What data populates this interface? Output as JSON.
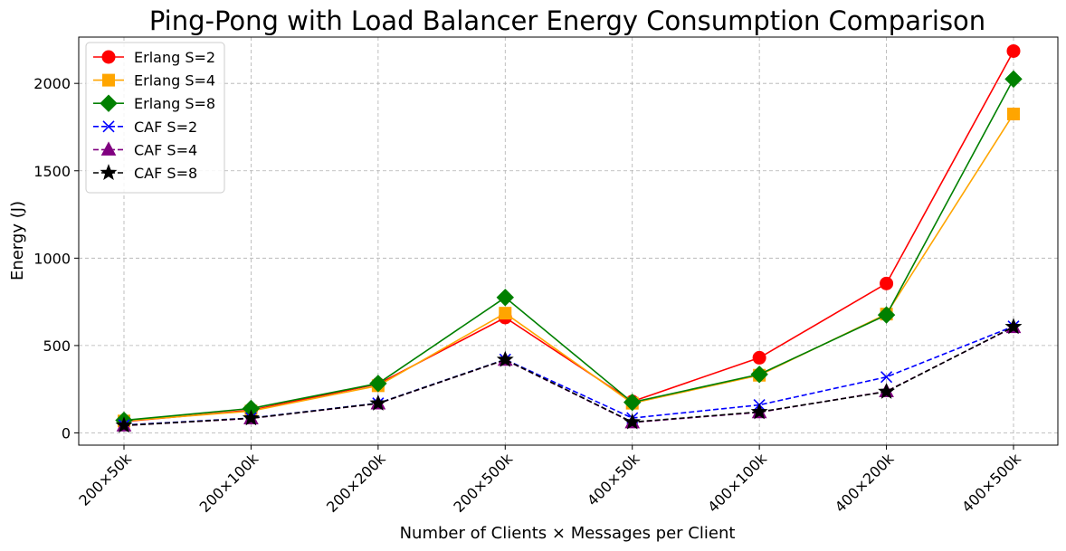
{
  "chart_data": {
    "type": "line",
    "title": "Ping-Pong with Load Balancer Energy Consumption Comparison",
    "xlabel": "Number of Clients × Messages per Client",
    "ylabel": "Energy (J)",
    "categories": [
      "200×50k",
      "200×100k",
      "200×200k",
      "200×500k",
      "400×50k",
      "400×100k",
      "400×200k",
      "400×500k"
    ],
    "ylim": [
      -70,
      2265
    ],
    "yticks": [
      0,
      500,
      1000,
      1500,
      2000
    ],
    "grid": true,
    "legend_position": "top-left",
    "series": [
      {
        "name": "Erlang S=2",
        "color": "#ff0000",
        "marker": "circle",
        "dashed": false,
        "values": [
          65,
          130,
          280,
          660,
          180,
          430,
          855,
          2185
        ]
      },
      {
        "name": "Erlang S=4",
        "color": "#ffa500",
        "marker": "square",
        "dashed": false,
        "values": [
          68,
          125,
          270,
          685,
          170,
          330,
          680,
          1825
        ]
      },
      {
        "name": "Erlang S=8",
        "color": "#008000",
        "marker": "diamond",
        "dashed": false,
        "values": [
          72,
          140,
          283,
          775,
          175,
          335,
          675,
          2025
        ]
      },
      {
        "name": "CAF S=2",
        "color": "#0000ff",
        "marker": "x",
        "dashed": true,
        "values": [
          45,
          85,
          170,
          420,
          85,
          160,
          320,
          610
        ]
      },
      {
        "name": "CAF S=4",
        "color": "#800080",
        "marker": "triangle",
        "dashed": true,
        "values": [
          42,
          83,
          168,
          418,
          60,
          118,
          238,
          605
        ]
      },
      {
        "name": "CAF S=8",
        "color": "#000000",
        "marker": "star",
        "dashed": true,
        "values": [
          43,
          84,
          169,
          419,
          62,
          120,
          236,
          607
        ]
      }
    ]
  }
}
